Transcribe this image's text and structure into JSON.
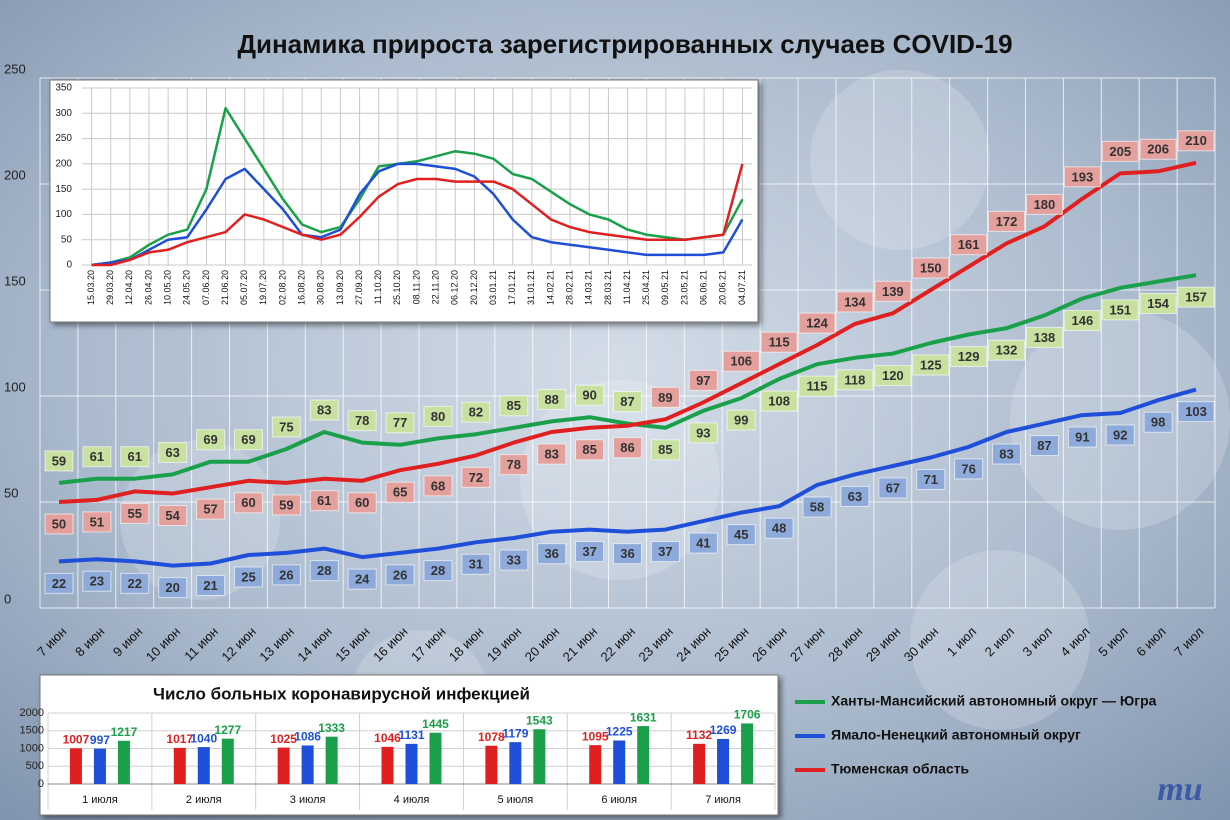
{
  "title": "Динамика прироста зарегистрированных случаев COVID-19",
  "logo": "mu",
  "chart_data": [
    {
      "type": "line",
      "categories": [
        "7 июн",
        "8 июн",
        "9 июн",
        "10 июн",
        "11 июн",
        "12 июн",
        "13 июн",
        "14 июн",
        "15 июн",
        "16 июн",
        "17 июн",
        "18 июн",
        "19 июн",
        "20 июн",
        "21 июн",
        "22 июн",
        "23 июн",
        "24 июн",
        "25 июн",
        "26 июн",
        "27 июн",
        "28 июн",
        "29 июн",
        "30 июн",
        "1 июл",
        "2 июл",
        "3 июл",
        "4 июл",
        "5 июл",
        "6 июл",
        "7 июл"
      ],
      "series": [
        {
          "name": "Ханты-Мансийский автономный округ — Югра",
          "color": "#1aa04a",
          "label_color": "#c8e0a0",
          "values": [
            59,
            61,
            61,
            63,
            69,
            69,
            75,
            83,
            78,
            77,
            80,
            82,
            85,
            88,
            90,
            87,
            85,
            93,
            99,
            108,
            115,
            118,
            120,
            125,
            129,
            132,
            138,
            146,
            151,
            154,
            157
          ]
        },
        {
          "name": "Ямало-Ненецкий автономный округ",
          "color": "#1f4fd8",
          "label_color": "#8eaadb",
          "values": [
            22,
            23,
            22,
            20,
            21,
            25,
            26,
            28,
            24,
            26,
            28,
            31,
            33,
            36,
            37,
            36,
            37,
            41,
            45,
            48,
            58,
            63,
            67,
            71,
            76,
            83,
            87,
            91,
            92,
            98,
            103
          ]
        },
        {
          "name": "Тюменская область",
          "color": "#e02020",
          "label_color": "#e3a09c",
          "values": [
            50,
            51,
            55,
            54,
            57,
            60,
            59,
            61,
            60,
            65,
            68,
            72,
            78,
            83,
            85,
            86,
            89,
            97,
            106,
            115,
            124,
            134,
            139,
            150,
            161,
            172,
            180,
            193,
            205,
            206,
            210
          ]
        }
      ],
      "ylim": [
        0,
        250
      ],
      "yticks": [
        0,
        50,
        100,
        150,
        200,
        250
      ],
      "grid": true,
      "legend": "bottom-right"
    },
    {
      "type": "line",
      "categories": [
        "15.03.20",
        "29.03.20",
        "12.04.20",
        "26.04.20",
        "10.05.20",
        "24.05.20",
        "07.06.20",
        "21.06.20",
        "05.07.20",
        "19.07.20",
        "02.08.20",
        "16.08.20",
        "30.08.20",
        "13.09.20",
        "27.09.20",
        "11.10.20",
        "25.10.20",
        "08.11.20",
        "22.11.20",
        "06.12.20",
        "20.12.20",
        "03.01.21",
        "17.01.21",
        "31.01.21",
        "14.02.21",
        "28.02.21",
        "14.03.21",
        "28.03.21",
        "11.04.21",
        "25.04.21",
        "09.05.21",
        "23.05.21",
        "06.06.21",
        "20.06.21",
        "04.07.21"
      ],
      "series": [
        {
          "color": "#1aa04a",
          "values": [
            0,
            5,
            15,
            40,
            60,
            70,
            150,
            310,
            250,
            190,
            130,
            80,
            65,
            75,
            130,
            195,
            200,
            205,
            215,
            225,
            220,
            210,
            180,
            170,
            145,
            120,
            100,
            90,
            70,
            60,
            55,
            50,
            55,
            60,
            130
          ]
        },
        {
          "color": "#1f4fd8",
          "values": [
            0,
            5,
            10,
            30,
            50,
            55,
            110,
            170,
            190,
            150,
            110,
            60,
            55,
            70,
            140,
            185,
            200,
            200,
            195,
            190,
            175,
            140,
            90,
            55,
            45,
            40,
            35,
            30,
            25,
            20,
            20,
            20,
            20,
            25,
            90
          ]
        },
        {
          "color": "#e02020",
          "values": [
            0,
            0,
            10,
            25,
            30,
            45,
            55,
            65,
            100,
            90,
            75,
            60,
            50,
            60,
            95,
            135,
            160,
            170,
            170,
            165,
            165,
            165,
            150,
            120,
            90,
            75,
            65,
            60,
            55,
            50,
            50,
            50,
            55,
            60,
            200
          ]
        }
      ],
      "ylim": [
        0,
        350
      ],
      "yticks": [
        0,
        50,
        100,
        150,
        200,
        250,
        300,
        350
      ],
      "grid": true
    },
    {
      "type": "bar",
      "title": "Число больных коронавирусной  инфекцией",
      "categories": [
        "1 июля",
        "2 июля",
        "3 июля",
        "4 июля",
        "5 июля",
        "6 июля",
        "7 июля"
      ],
      "series": [
        {
          "color": "#e02020",
          "values": [
            1007,
            1017,
            1025,
            1046,
            1078,
            1095,
            1132
          ]
        },
        {
          "color": "#1f4fd8",
          "values": [
            997,
            1040,
            1086,
            1131,
            1179,
            1225,
            1269
          ]
        },
        {
          "color": "#1aa04a",
          "values": [
            1217,
            1277,
            1333,
            1445,
            1543,
            1631,
            1706
          ]
        }
      ],
      "ylim": [
        0,
        2000
      ],
      "yticks": [
        0,
        500,
        1000,
        1500,
        2000
      ],
      "grid": true
    }
  ]
}
